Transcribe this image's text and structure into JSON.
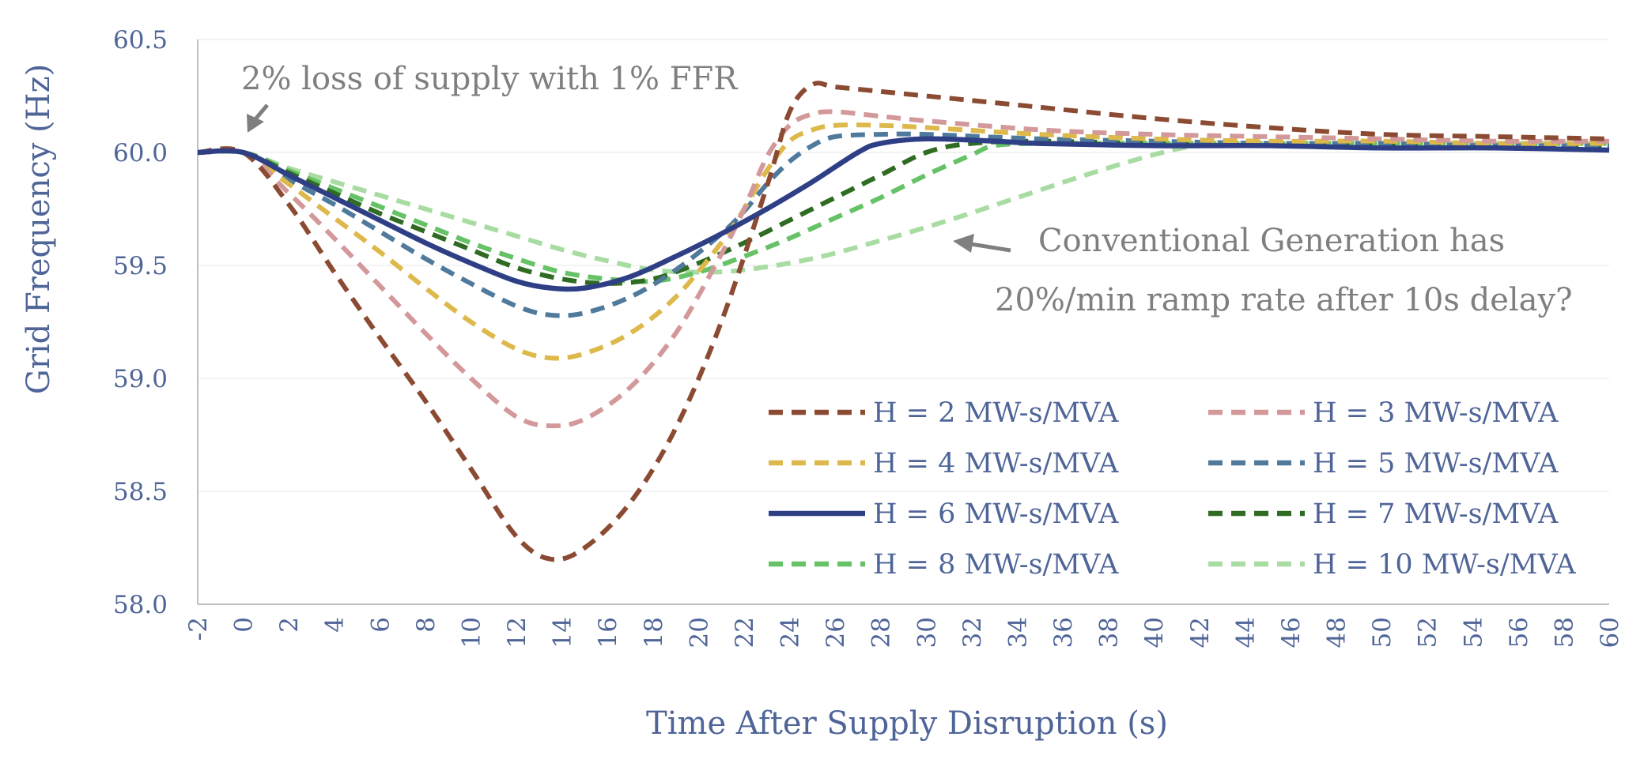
{
  "chart_data": {
    "type": "line",
    "title": "",
    "xlabel": "Time After Supply Disruption (s)",
    "ylabel": "Grid Frequency (Hz)",
    "xlim": [
      -2,
      60
    ],
    "ylim": [
      58.0,
      60.5
    ],
    "xticks": [
      "-2",
      "0",
      "2",
      "4",
      "6",
      "8",
      "10",
      "12",
      "14",
      "16",
      "18",
      "20",
      "22",
      "24",
      "26",
      "28",
      "30",
      "32",
      "34",
      "36",
      "38",
      "40",
      "42",
      "44",
      "46",
      "48",
      "50",
      "52",
      "54",
      "56",
      "58",
      "60"
    ],
    "yticks": [
      "58.0",
      "58.5",
      "59.0",
      "59.5",
      "60.0",
      "60.5"
    ],
    "grid": true,
    "legend_position": "bottom-right",
    "annotations": [
      {
        "text": "2% loss of  supply with 1% FFR"
      },
      {
        "text": "Conventional Generation has"
      },
      {
        "text": "20%/min ramp rate after 10s delay?"
      }
    ],
    "series": [
      {
        "name": "H = 2 MW-s/MVA",
        "color": "#8b4b33",
        "dashed": true,
        "points": [
          [
            -2,
            60.0
          ],
          [
            0,
            60.0
          ],
          [
            2,
            59.77
          ],
          [
            4,
            59.47
          ],
          [
            6,
            59.18
          ],
          [
            8,
            58.9
          ],
          [
            10,
            58.6
          ],
          [
            12,
            58.3
          ],
          [
            13.5,
            58.2
          ],
          [
            15,
            58.25
          ],
          [
            17,
            58.45
          ],
          [
            19,
            58.78
          ],
          [
            21,
            59.25
          ],
          [
            23,
            59.85
          ],
          [
            24,
            60.18
          ],
          [
            25,
            60.3
          ],
          [
            26,
            60.29
          ],
          [
            28,
            60.27
          ],
          [
            30,
            60.25
          ],
          [
            35,
            60.2
          ],
          [
            40,
            60.15
          ],
          [
            45,
            60.11
          ],
          [
            50,
            60.08
          ],
          [
            55,
            60.07
          ],
          [
            60,
            60.06
          ]
        ]
      },
      {
        "name": "H = 3 MW-s/MVA",
        "color": "#d3989a",
        "dashed": true,
        "points": [
          [
            -2,
            60.0
          ],
          [
            0,
            60.0
          ],
          [
            2,
            59.82
          ],
          [
            4,
            59.62
          ],
          [
            6,
            59.41
          ],
          [
            8,
            59.2
          ],
          [
            10,
            59.0
          ],
          [
            12,
            58.83
          ],
          [
            13.5,
            58.79
          ],
          [
            15,
            58.82
          ],
          [
            17,
            58.96
          ],
          [
            19,
            59.2
          ],
          [
            21,
            59.55
          ],
          [
            22,
            59.75
          ],
          [
            23,
            59.98
          ],
          [
            24,
            60.12
          ],
          [
            25,
            60.17
          ],
          [
            26,
            60.18
          ],
          [
            28,
            60.16
          ],
          [
            30,
            60.14
          ],
          [
            35,
            60.1
          ],
          [
            40,
            60.08
          ],
          [
            45,
            60.07
          ],
          [
            50,
            60.06
          ],
          [
            55,
            60.05
          ],
          [
            60,
            60.05
          ]
        ]
      },
      {
        "name": "H = 4 MW-s/MVA",
        "color": "#ddb84a",
        "dashed": true,
        "points": [
          [
            -2,
            60.0
          ],
          [
            0,
            60.0
          ],
          [
            2,
            59.86
          ],
          [
            4,
            59.71
          ],
          [
            6,
            59.56
          ],
          [
            8,
            59.4
          ],
          [
            10,
            59.25
          ],
          [
            12,
            59.13
          ],
          [
            13.5,
            59.09
          ],
          [
            15,
            59.11
          ],
          [
            17,
            59.2
          ],
          [
            19,
            59.36
          ],
          [
            21,
            59.6
          ],
          [
            22,
            59.75
          ],
          [
            23,
            59.92
          ],
          [
            24,
            60.05
          ],
          [
            25,
            60.1
          ],
          [
            26,
            60.12
          ],
          [
            28,
            60.12
          ],
          [
            30,
            60.11
          ],
          [
            35,
            60.08
          ],
          [
            40,
            60.06
          ],
          [
            45,
            60.05
          ],
          [
            50,
            60.05
          ],
          [
            55,
            60.04
          ],
          [
            60,
            60.04
          ]
        ]
      },
      {
        "name": "H = 5 MW-s/MVA",
        "color": "#4f7a9c",
        "dashed": true,
        "points": [
          [
            -2,
            60.0
          ],
          [
            0,
            60.0
          ],
          [
            2,
            59.88
          ],
          [
            4,
            59.77
          ],
          [
            6,
            59.65
          ],
          [
            8,
            59.53
          ],
          [
            10,
            59.42
          ],
          [
            12,
            59.32
          ],
          [
            13.5,
            59.28
          ],
          [
            15,
            59.29
          ],
          [
            17,
            59.36
          ],
          [
            19,
            59.48
          ],
          [
            21,
            59.64
          ],
          [
            22,
            59.74
          ],
          [
            23,
            59.86
          ],
          [
            24,
            59.96
          ],
          [
            25,
            60.03
          ],
          [
            26,
            60.07
          ],
          [
            28,
            60.08
          ],
          [
            30,
            60.08
          ],
          [
            35,
            60.06
          ],
          [
            40,
            60.05
          ],
          [
            45,
            60.04
          ],
          [
            50,
            60.04
          ],
          [
            55,
            60.03
          ],
          [
            60,
            60.03
          ]
        ]
      },
      {
        "name": "H = 6 MW-s/MVA",
        "color": "#2e3f85",
        "dashed": false,
        "points": [
          [
            -2,
            60.0
          ],
          [
            0,
            60.0
          ],
          [
            2,
            59.9
          ],
          [
            4,
            59.8
          ],
          [
            6,
            59.7
          ],
          [
            8,
            59.6
          ],
          [
            10,
            59.51
          ],
          [
            12,
            59.43
          ],
          [
            13.5,
            59.4
          ],
          [
            15,
            59.4
          ],
          [
            17,
            59.45
          ],
          [
            19,
            59.54
          ],
          [
            21,
            59.64
          ],
          [
            23,
            59.75
          ],
          [
            25,
            59.87
          ],
          [
            27,
            60.0
          ],
          [
            28,
            60.04
          ],
          [
            30,
            60.06
          ],
          [
            33,
            60.05
          ],
          [
            35,
            60.04
          ],
          [
            40,
            60.03
          ],
          [
            45,
            60.03
          ],
          [
            50,
            60.02
          ],
          [
            55,
            60.02
          ],
          [
            60,
            60.01
          ]
        ]
      },
      {
        "name": "H = 7 MW-s/MVA",
        "color": "#2f6b22",
        "dashed": true,
        "points": [
          [
            -2,
            60.0
          ],
          [
            0,
            60.0
          ],
          [
            2,
            59.91
          ],
          [
            4,
            59.82
          ],
          [
            6,
            59.73
          ],
          [
            8,
            59.65
          ],
          [
            10,
            59.57
          ],
          [
            12,
            59.49
          ],
          [
            14,
            59.44
          ],
          [
            16,
            59.42
          ],
          [
            18,
            59.44
          ],
          [
            20,
            59.51
          ],
          [
            22,
            59.6
          ],
          [
            24,
            59.7
          ],
          [
            26,
            59.8
          ],
          [
            28,
            59.9
          ],
          [
            30,
            60.0
          ],
          [
            32,
            60.04
          ],
          [
            35,
            60.05
          ],
          [
            40,
            60.04
          ],
          [
            45,
            60.04
          ],
          [
            50,
            60.03
          ],
          [
            55,
            60.03
          ],
          [
            60,
            60.03
          ]
        ]
      },
      {
        "name": "H = 8 MW-s/MVA",
        "color": "#66c266",
        "dashed": true,
        "points": [
          [
            -2,
            60.0
          ],
          [
            0,
            60.0
          ],
          [
            2,
            59.92
          ],
          [
            4,
            59.84
          ],
          [
            6,
            59.76
          ],
          [
            8,
            59.68
          ],
          [
            10,
            59.6
          ],
          [
            12,
            59.53
          ],
          [
            14,
            59.47
          ],
          [
            16,
            59.44
          ],
          [
            18,
            59.43
          ],
          [
            20,
            59.47
          ],
          [
            22,
            59.54
          ],
          [
            24,
            59.62
          ],
          [
            26,
            59.71
          ],
          [
            28,
            59.8
          ],
          [
            30,
            59.9
          ],
          [
            32,
            59.99
          ],
          [
            33,
            60.03
          ],
          [
            35,
            60.04
          ],
          [
            40,
            60.04
          ],
          [
            45,
            60.04
          ],
          [
            50,
            60.04
          ],
          [
            55,
            60.04
          ],
          [
            60,
            60.04
          ]
        ]
      },
      {
        "name": "H = 10 MW-s/MVA",
        "color": "#a8dca2",
        "dashed": true,
        "points": [
          [
            -2,
            60.0
          ],
          [
            0,
            60.0
          ],
          [
            2,
            59.93
          ],
          [
            4,
            59.87
          ],
          [
            6,
            59.81
          ],
          [
            8,
            59.75
          ],
          [
            10,
            59.69
          ],
          [
            12,
            59.63
          ],
          [
            14,
            59.57
          ],
          [
            16,
            59.52
          ],
          [
            18,
            59.48
          ],
          [
            20,
            59.47
          ],
          [
            22,
            59.48
          ],
          [
            25,
            59.53
          ],
          [
            28,
            59.61
          ],
          [
            31,
            59.7
          ],
          [
            34,
            59.8
          ],
          [
            37,
            59.9
          ],
          [
            40,
            59.99
          ],
          [
            42,
            60.03
          ],
          [
            45,
            60.04
          ],
          [
            50,
            60.04
          ],
          [
            55,
            60.04
          ],
          [
            60,
            60.04
          ]
        ]
      }
    ]
  }
}
